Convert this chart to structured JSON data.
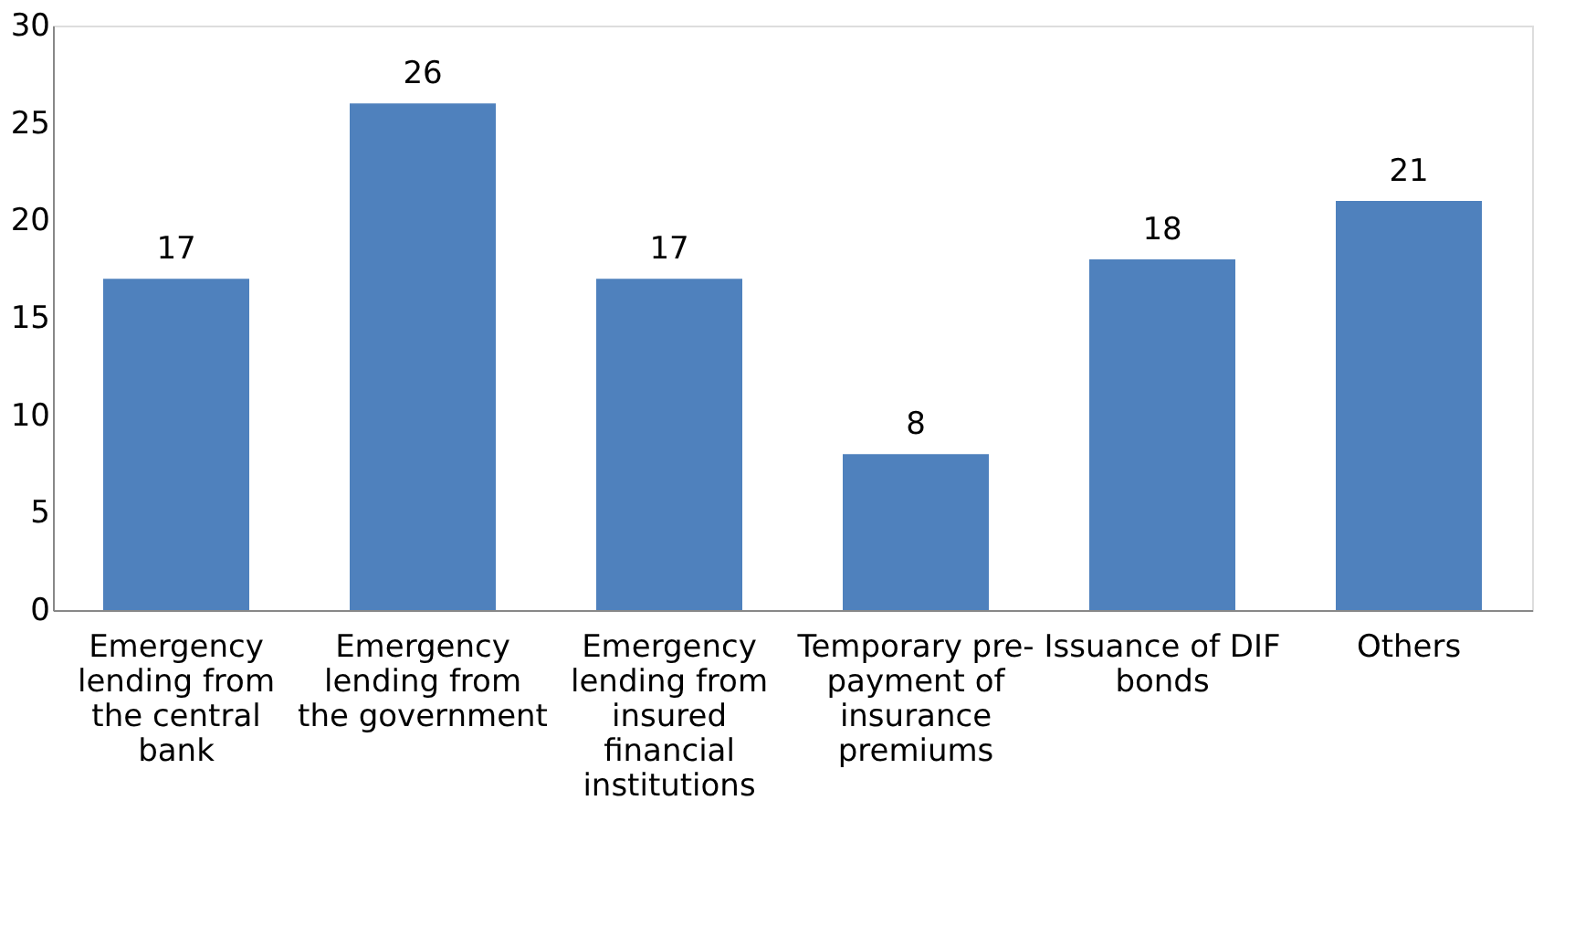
{
  "chart_data": {
    "type": "bar",
    "categories": [
      "Emergency lending from the central bank",
      "Emergency lending from the government",
      "Emergency lending from insured financial institutions",
      "Temporary pre-payment of insurance premiums",
      "Issuance of DIF bonds",
      "Others"
    ],
    "values": [
      17,
      26,
      17,
      8,
      18,
      21
    ],
    "color": "#4f81bd",
    "ylim": [
      0,
      30
    ],
    "yticks": [
      0,
      5,
      10,
      15,
      20,
      25,
      30
    ],
    "grid": false,
    "data_labels": true
  }
}
